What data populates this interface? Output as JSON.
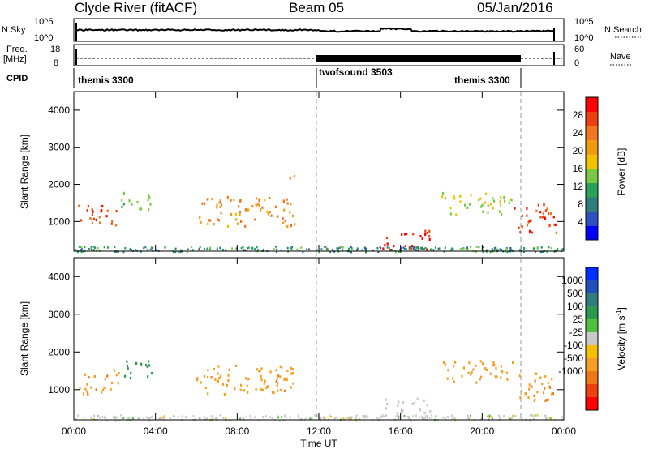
{
  "header": {
    "station": "Clyde River (fitACF)",
    "beam": "Beam 05",
    "date": "05/Jan/2016"
  },
  "top_panels": {
    "nsky_label": "N.Sky",
    "nsky_ticks": [
      "10^5",
      "10^0"
    ],
    "nsearch_label": "N.Search",
    "freq_label_1": "Freq.",
    "freq_label_2": "[MHz]",
    "freq_ticks": [
      "18",
      "8"
    ],
    "nave_ticks": [
      "60",
      "0"
    ],
    "nave_label": "Nave",
    "cpid_label": "CPID",
    "cpid_segments": [
      "themis 3300",
      "twofsound 3503",
      "themis 3300"
    ]
  },
  "colors": {
    "power": [
      "#0000ff",
      "#3050c0",
      "#2e7d7a",
      "#2aa15a",
      "#7ac943",
      "#f2c200",
      "#f39c12",
      "#f07820",
      "#f04010",
      "#ff0000"
    ],
    "velocity": [
      "#0030ff",
      "#2050c0",
      "#2e7d7a",
      "#2a9a50",
      "#50c040",
      "#c8c8c8",
      "#f6c000",
      "#f5a020",
      "#f07818",
      "#f04010",
      "#ff0000"
    ],
    "nsky_line": "#000000"
  },
  "chart_data": [
    {
      "type": "heatmap",
      "name": "power",
      "ylabel": "Slant Range [km]",
      "yticks": [
        "1000",
        "2000",
        "3000",
        "4000"
      ],
      "ylim": [
        200,
        4500
      ],
      "colorbar_label": "Power [dB]",
      "colorbar_ticks": [
        "4",
        "8",
        "12",
        "16",
        "20",
        "24",
        "28"
      ],
      "colorbar_range": [
        0,
        32
      ],
      "regions": [
        {
          "t": [
            0.2,
            2.2
          ],
          "r": [
            900,
            1500
          ],
          "value": 26
        },
        {
          "t": [
            2.3,
            3.8
          ],
          "r": [
            1300,
            1800
          ],
          "value": 14
        },
        {
          "t": [
            6.0,
            10.8
          ],
          "r": [
            900,
            1700
          ],
          "value": 22
        },
        {
          "t": [
            10.4,
            10.8
          ],
          "r": [
            2200,
            2500
          ],
          "value": 24
        },
        {
          "t": [
            15.0,
            17.5
          ],
          "r": [
            250,
            800
          ],
          "value": 30
        },
        {
          "t": [
            18.0,
            21.5
          ],
          "r": [
            1200,
            1800
          ],
          "value": 16
        },
        {
          "t": [
            21.5,
            23.6
          ],
          "r": [
            700,
            1500
          ],
          "value": 28
        }
      ]
    },
    {
      "type": "heatmap",
      "name": "velocity",
      "ylabel": "Slant Range [km]",
      "yticks": [
        "1000",
        "2000",
        "3000",
        "4000"
      ],
      "ylim": [
        200,
        4500
      ],
      "colorbar_label": "Velocity [m s",
      "colorbar_unit_sup": "-1",
      "colorbar_unit_end": "]",
      "colorbar_ticks": [
        "1000",
        "500",
        "100",
        "25",
        "-25",
        "-100",
        "-500",
        "-1000"
      ],
      "regions": [
        {
          "t": [
            0.2,
            2.2
          ],
          "r": [
            900,
            1600
          ],
          "value": -450
        },
        {
          "t": [
            2.3,
            3.8
          ],
          "r": [
            1300,
            1800
          ],
          "value": 200
        },
        {
          "t": [
            6.0,
            10.8
          ],
          "r": [
            900,
            1700
          ],
          "value": -450
        },
        {
          "t": [
            15.0,
            17.5
          ],
          "r": [
            250,
            800
          ],
          "value": 0
        },
        {
          "t": [
            18.0,
            21.5
          ],
          "r": [
            1200,
            1800
          ],
          "value": -300
        },
        {
          "t": [
            21.5,
            23.6
          ],
          "r": [
            700,
            1500
          ],
          "value": -450
        }
      ],
      "xlabel": "Time UT",
      "xticks": [
        "00:00",
        "04:00",
        "08:00",
        "12:00",
        "16:00",
        "20:00",
        "00:00"
      ],
      "xlim": [
        0,
        24
      ]
    }
  ]
}
